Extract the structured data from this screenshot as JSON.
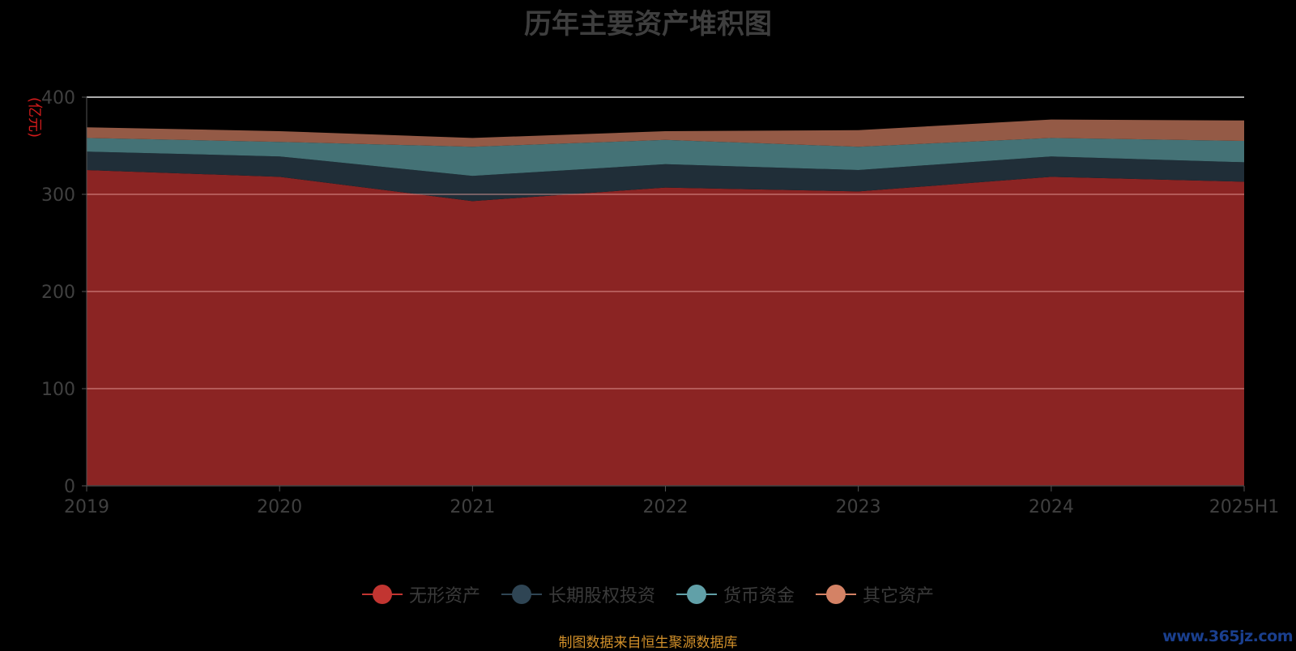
{
  "title": "历年主要资产堆积图",
  "unit": "(亿元)",
  "source_note": "制图数据来自恒生聚源数据库",
  "watermark": "www.365jz.com",
  "chart_data": {
    "type": "area",
    "stacked": true,
    "title": "历年主要资产堆积图",
    "ylabel": "(亿元)",
    "xlabel": "",
    "categories": [
      "2019",
      "2020",
      "2021",
      "2022",
      "2023",
      "2024",
      "2025H1"
    ],
    "ylim": [
      0,
      400
    ],
    "yticks": [
      0,
      100,
      200,
      300,
      400
    ],
    "grid": true,
    "legend_position": "bottom",
    "series": [
      {
        "name": "无形资产",
        "color": "#c23531",
        "fill": "#8b2423",
        "values": [
          325,
          318,
          293,
          307,
          303,
          318,
          313
        ]
      },
      {
        "name": "长期股权投资",
        "color": "#2f4554",
        "fill": "#202e38",
        "values": [
          19,
          21,
          26,
          24,
          22,
          21,
          20
        ]
      },
      {
        "name": "货币资金",
        "color": "#61a0a8",
        "fill": "#447276",
        "values": [
          14,
          15,
          30,
          25,
          24,
          19,
          22
        ]
      },
      {
        "name": "其它资产",
        "color": "#d48265",
        "fill": "#945a46",
        "values": [
          11,
          11,
          9,
          9,
          17,
          19,
          21
        ]
      }
    ]
  }
}
